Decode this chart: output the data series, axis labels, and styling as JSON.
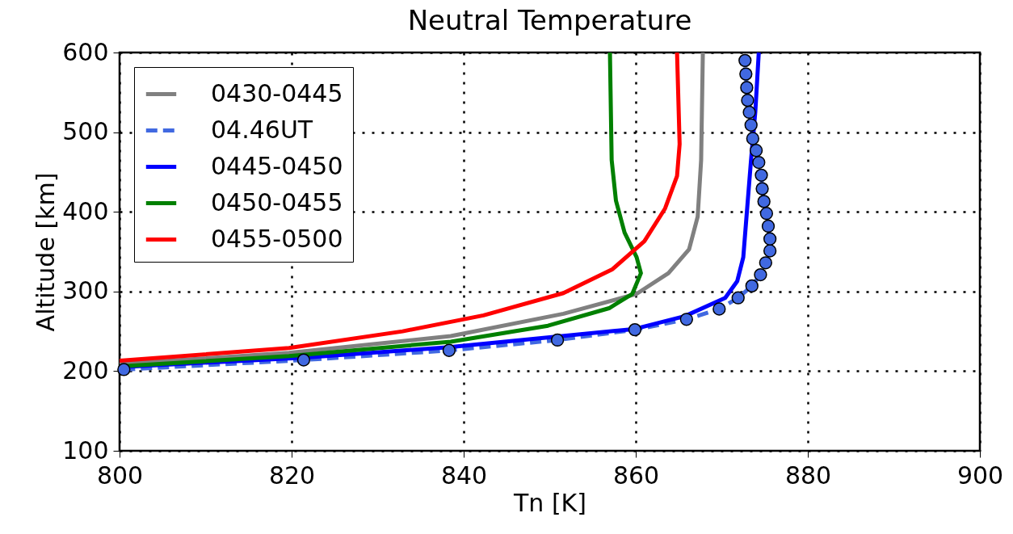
{
  "chart_data": {
    "type": "line",
    "title": "Neutral Temperature",
    "xlabel": "Tn [K]",
    "ylabel": "Altitude [km]",
    "xlim": [
      800,
      900
    ],
    "xticks": [
      800,
      820,
      840,
      860,
      880,
      900
    ],
    "ylim": [
      100,
      600
    ],
    "yticks": [
      100,
      200,
      300,
      400,
      500,
      600
    ],
    "grid": true,
    "legend": "top left",
    "series": [
      {
        "name": "0430-0445",
        "color": "#808080",
        "x": [
          800,
          819.7,
          838.5,
          851.6,
          860.1,
          863.8,
          866.2,
          867.2,
          867.6,
          867.8
        ],
        "values": [
          209,
          223,
          244,
          272,
          297,
          323,
          353,
          394,
          465,
          600
        ]
      },
      {
        "name": "04.46UT",
        "color": "#4169e1",
        "line_style": "dashed",
        "marker": "circle",
        "x": [
          800.5,
          821.4,
          838.3,
          850.9,
          859.9,
          865.9,
          869.7,
          871.9,
          873.5,
          874.5,
          875.1,
          875.6,
          875.6,
          875.4,
          875.2,
          874.9,
          874.7,
          874.6,
          874.3,
          874.0,
          873.6,
          873.4,
          873.2,
          873.0,
          872.9,
          872.8,
          872.7
        ],
        "values": [
          202,
          214,
          226,
          239,
          252,
          265,
          278,
          292,
          307,
          321,
          336,
          351,
          366,
          382,
          398,
          413,
          429,
          446,
          462,
          477,
          492,
          509,
          525,
          540,
          556,
          573,
          590
        ]
      },
      {
        "name": "0445-0450",
        "color": "#0000ff",
        "x": [
          800,
          821.4,
          838.3,
          859.9,
          865.7,
          870.4,
          871.8,
          872.5,
          872.8,
          873.4,
          873.9,
          874.3
        ],
        "values": [
          205,
          217,
          230,
          253,
          269,
          292,
          313,
          343,
          384,
          465,
          526,
          600
        ]
      },
      {
        "name": "0450-0455",
        "color": "#008000",
        "x": [
          800,
          819.7,
          838.5,
          849.8,
          856.9,
          859.6,
          860.6,
          860.1,
          858.7,
          857.7,
          857.2,
          857.0
        ],
        "values": [
          206,
          219,
          237,
          257,
          279,
          297,
          323,
          343,
          374,
          414,
          465,
          600
        ]
      },
      {
        "name": "0455-0500",
        "color": "#ff0000",
        "x": [
          800,
          819.7,
          832.9,
          842.3,
          851.6,
          857.3,
          861.0,
          863.4,
          864.8,
          865.1,
          864.8
        ],
        "values": [
          213,
          229,
          250,
          270,
          298,
          328,
          363,
          404,
          445,
          485,
          600
        ]
      }
    ]
  }
}
